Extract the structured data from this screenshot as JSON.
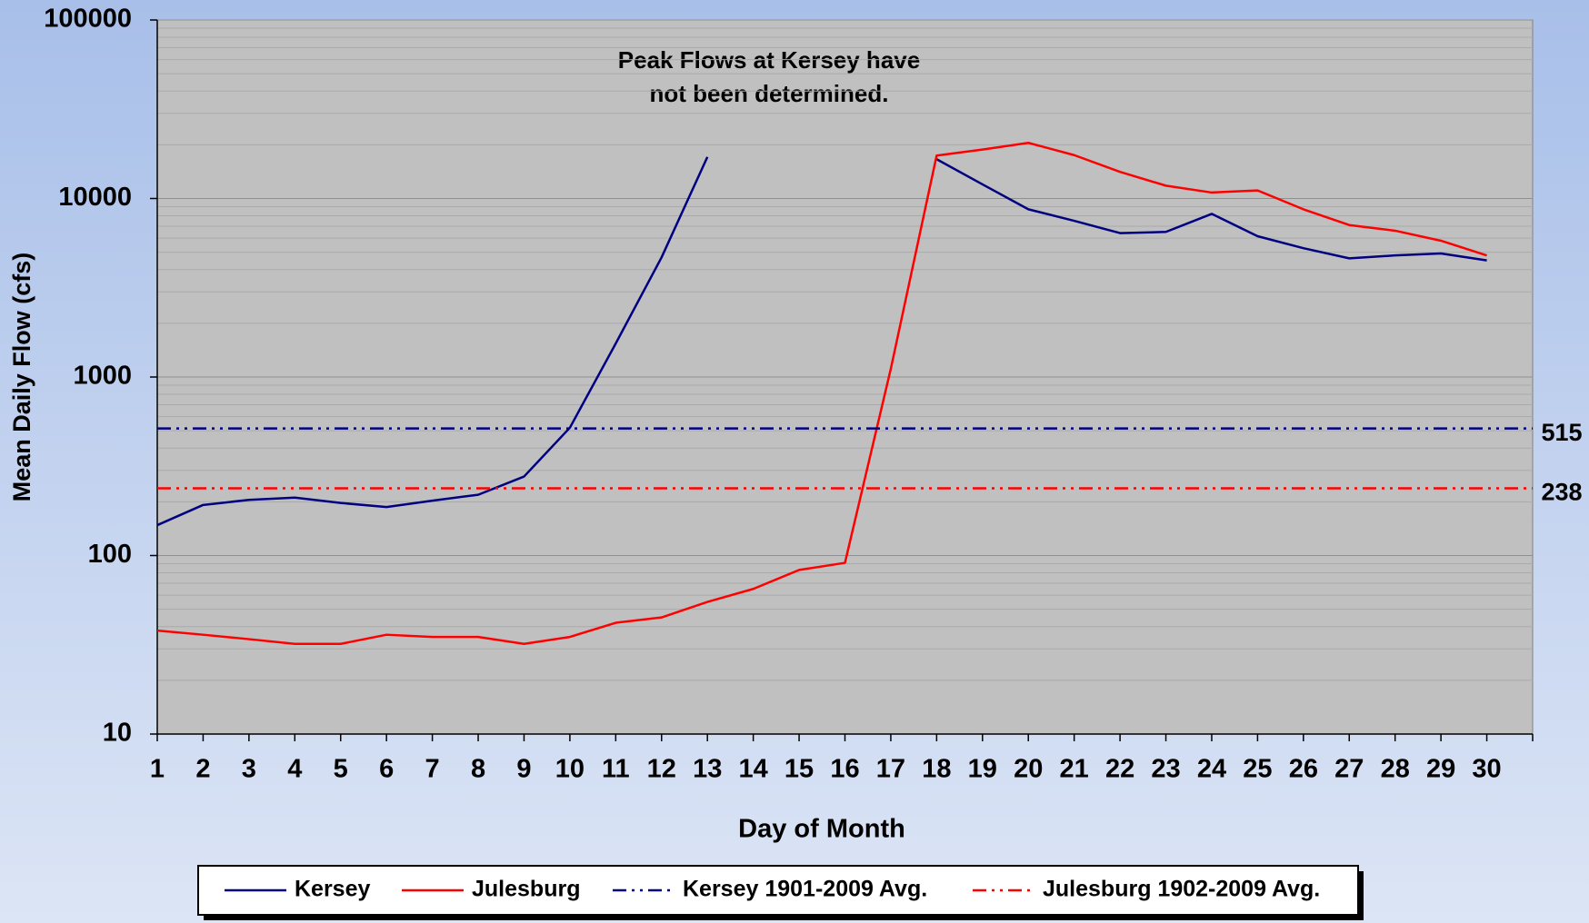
{
  "chart_data": {
    "type": "line",
    "annotation": [
      "Peak Flows at Kersey have",
      "not been determined."
    ],
    "xlabel": "Day of Month",
    "ylabel": "Mean Daily Flow (cfs)",
    "x": [
      1,
      2,
      3,
      4,
      5,
      6,
      7,
      8,
      9,
      10,
      11,
      12,
      13,
      14,
      15,
      16,
      17,
      18,
      19,
      20,
      21,
      22,
      23,
      24,
      25,
      26,
      27,
      28,
      29,
      30
    ],
    "xlim": [
      1,
      31
    ],
    "xticks": [
      1,
      2,
      3,
      4,
      5,
      6,
      7,
      8,
      9,
      10,
      11,
      12,
      13,
      14,
      15,
      16,
      17,
      18,
      19,
      20,
      21,
      22,
      23,
      24,
      25,
      26,
      27,
      28,
      29,
      30
    ],
    "ylim": [
      10,
      100000
    ],
    "yticks": [
      10,
      100,
      1000,
      10000,
      100000
    ],
    "log_y": true,
    "grid": true,
    "minor_grid": true,
    "legend": "bottom",
    "series": [
      {
        "name": "Kersey",
        "color": "#000080",
        "values": [
          148,
          192,
          205,
          211,
          197,
          187,
          203,
          219,
          277,
          520,
          1540,
          4680,
          17100,
          null,
          null,
          null,
          null,
          16600,
          12000,
          8700,
          7500,
          6400,
          6500,
          8200,
          6150,
          5270,
          4620,
          4800,
          4920,
          4500
        ]
      },
      {
        "name": "Julesburg",
        "color": "#ff0000",
        "values": [
          38,
          36,
          34,
          32,
          32,
          36,
          35,
          35,
          32,
          35,
          42,
          45,
          55,
          65,
          83,
          91,
          1110,
          17400,
          18800,
          20500,
          17500,
          14100,
          11800,
          10800,
          11100,
          8700,
          7100,
          6600,
          5800,
          4800
        ]
      },
      {
        "name": "Kersey 1901-2009 Avg.",
        "color": "#000080",
        "dashed": true,
        "value": 515
      },
      {
        "name": "Julesburg 1902-2009 Avg.",
        "color": "#ff0000",
        "dashed": true,
        "value": 238
      }
    ]
  }
}
